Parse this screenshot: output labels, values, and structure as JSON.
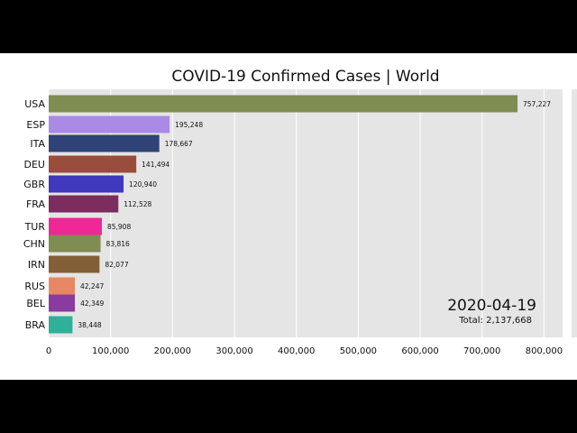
{
  "chart_data": {
    "type": "bar",
    "orientation": "horizontal",
    "title": "COVID-19 Confirmed Cases | World",
    "date": "2020-04-19",
    "total_text": "Total: 2,137,668",
    "categories": [
      "USA",
      "ESP",
      "ITA",
      "DEU",
      "GBR",
      "FRA",
      "TUR",
      "CHN",
      "IRN",
      "RUS",
      "BEL",
      "BRA"
    ],
    "values": [
      757227,
      195248,
      178667,
      141494,
      120940,
      112528,
      85908,
      83816,
      82077,
      42247,
      42349,
      38448
    ],
    "value_labels": [
      "757,227",
      "195,248",
      "178,667",
      "141,494",
      "120,940",
      "112,528",
      "85,908",
      "83,816",
      "82,077",
      "42,247",
      "42,349",
      "38,448"
    ],
    "colors": [
      "#7f8c52",
      "#a98ae6",
      "#2f4377",
      "#994e3d",
      "#4038bd",
      "#7d2c60",
      "#f02896",
      "#7f8c52",
      "#835f37",
      "#e58863",
      "#8a3b9f",
      "#2fb09a"
    ],
    "xticks": [
      0,
      100000,
      200000,
      300000,
      400000,
      500000,
      600000,
      700000,
      800000
    ],
    "xtick_labels": [
      "0",
      "100,000",
      "200,000",
      "300,000",
      "400,000",
      "500,000",
      "600,000",
      "700,000",
      "800,000"
    ],
    "xlim": [
      0,
      830000
    ],
    "grid": true
  }
}
